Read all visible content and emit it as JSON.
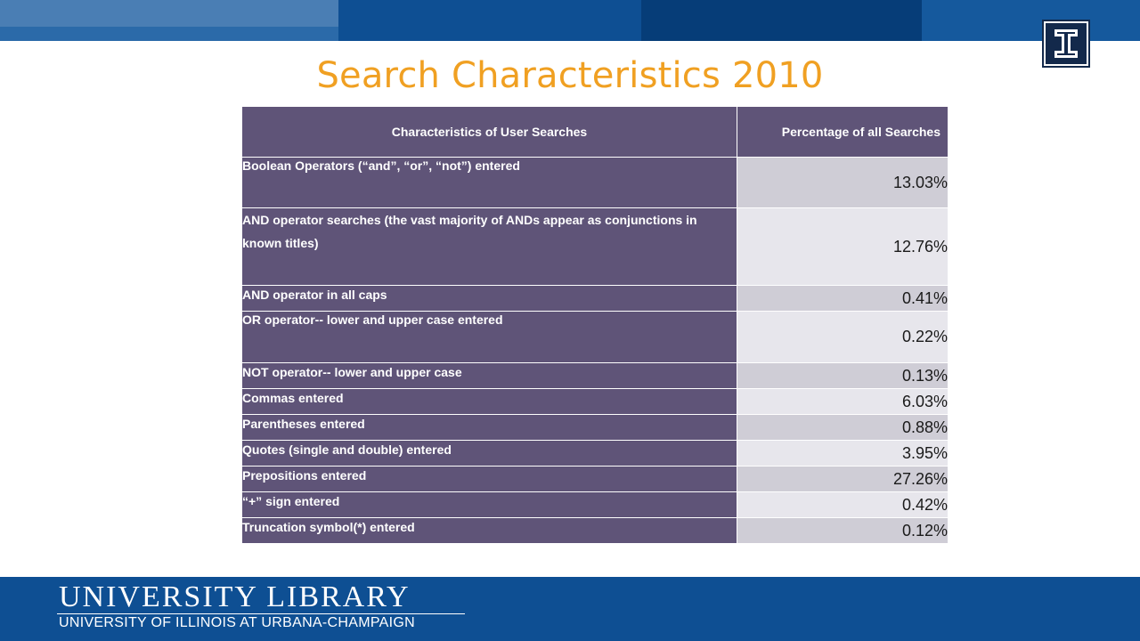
{
  "slide": {
    "title": "Search Characteristics 2010"
  },
  "table": {
    "headers": [
      "Characteristics of User Searches",
      "Percentage of all Searches"
    ],
    "rows": [
      {
        "label": "Boolean Operators (“and”, “or”, “not”) entered",
        "value": "13.03%"
      },
      {
        "label": "AND operator searches (the vast majority of ANDs appear as conjunctions in known titles)",
        "value": "12.76%"
      },
      {
        "label": "AND operator in all caps",
        "value": "0.41%"
      },
      {
        "label": "OR operator-- lower and upper case entered",
        "value": "0.22%"
      },
      {
        "label": "NOT operator-- lower and upper case",
        "value": "0.13%"
      },
      {
        "label": "Commas entered",
        "value": "6.03%"
      },
      {
        "label": "Parentheses entered",
        "value": "0.88%"
      },
      {
        "label": "Quotes (single and double) entered",
        "value": "3.95%"
      },
      {
        "label": "Prepositions entered",
        "value": "27.26%"
      },
      {
        "label": "“+” sign entered",
        "value": "0.42%"
      },
      {
        "label": "Truncation symbol(*) entered",
        "value": "0.12%"
      }
    ]
  },
  "footer": {
    "line1": "UNIVERSITY LIBRARY",
    "line2": "UNIVERSITY OF ILLINOIS AT URBANA-CHAMPAIGN"
  },
  "logo": {
    "icon": "block-i-logo-icon",
    "letter": "I"
  },
  "colors": {
    "title": "#f0a022",
    "header_bg": "#5f5478",
    "value_odd": "#cfcdd6",
    "value_even": "#e7e6ec",
    "brand_blue": "#0e4f93",
    "brand_navy": "#13294b"
  }
}
